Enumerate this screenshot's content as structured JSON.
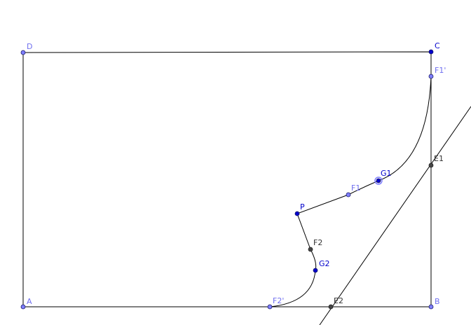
{
  "points": {
    "A": {
      "label": "A",
      "style": "free"
    },
    "B": {
      "label": "B",
      "style": "free"
    },
    "C": {
      "label": "C",
      "style": "dependent"
    },
    "D": {
      "label": "D",
      "style": "free"
    },
    "P": {
      "label": "P",
      "style": "dependent"
    },
    "F1": {
      "label": "F1",
      "style": "free"
    },
    "F1p": {
      "label": "F1'",
      "style": "free"
    },
    "F2": {
      "label": "F2",
      "style": "fixed"
    },
    "F2p": {
      "label": "F2'",
      "style": "free"
    },
    "G1": {
      "label": "G1",
      "style": "selected"
    },
    "G2": {
      "label": "G2",
      "style": "dependent"
    },
    "E1": {
      "label": "E1",
      "style": "fixed"
    },
    "E2": {
      "label": "E2",
      "style": "fixed"
    }
  },
  "colors": {
    "free_fill": "#7f7fff",
    "free_label": "#6f6fef",
    "dependent_fill": "#0000cc",
    "dependent_label": "#0000cc",
    "fixed_fill": "#444444",
    "fixed_label": "#333333",
    "line": "#000000"
  }
}
